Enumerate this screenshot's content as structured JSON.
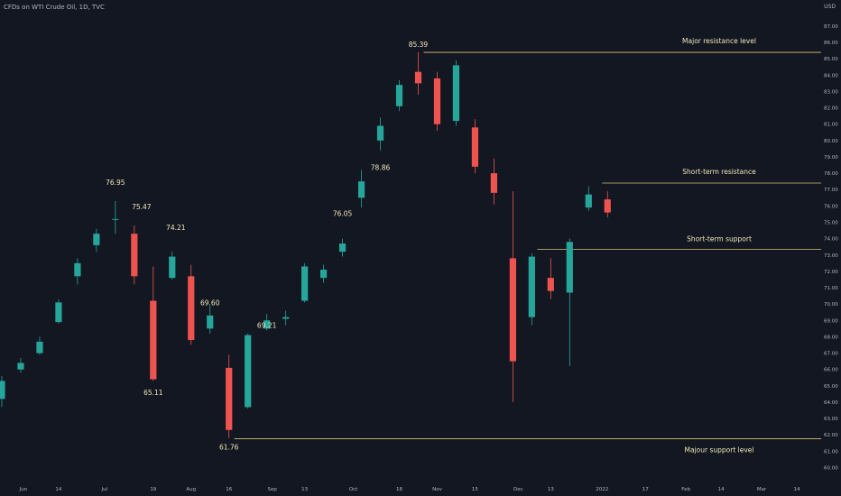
{
  "header": {
    "title": "CFDs on WTI Crude Oil, 1D, TVC"
  },
  "currency_label": "USD",
  "colors": {
    "background": "#131722",
    "up": "#26a69a",
    "down": "#ef5350",
    "level_line": "#d6c36a",
    "annotation_text": "#f0e7b8",
    "axis_text": "#b2b5be"
  },
  "chart_data": {
    "type": "candlestick",
    "title": "CFDs on WTI Crude Oil, 1D, TVC",
    "ylabel": "USD",
    "ylim": [
      59.2,
      87.6
    ],
    "y_ticks": [
      "60.00",
      "61.00",
      "62.00",
      "63.00",
      "64.00",
      "65.00",
      "66.00",
      "67.00",
      "68.00",
      "69.00",
      "70.00",
      "71.00",
      "72.00",
      "73.00",
      "74.00",
      "75.00",
      "76.00",
      "77.00",
      "78.00",
      "79.00",
      "80.00",
      "81.00",
      "82.00",
      "83.00",
      "84.00",
      "85.00",
      "86.00",
      "87.00"
    ],
    "x_tick_labels": [
      "Jun",
      "14",
      "Jul",
      "19",
      "Aug",
      "16",
      "Sep",
      "13",
      "Oct",
      "18",
      "Nov",
      "15",
      "Dec",
      "13",
      "2022",
      "17",
      "Feb",
      "14",
      "Mar",
      "14"
    ],
    "x_range": [
      "2021-05-24",
      "2022-03-23"
    ],
    "x_ticks": [
      {
        "label": "Jun",
        "date": "2021-06-01"
      },
      {
        "label": "14",
        "date": "2021-06-14"
      },
      {
        "label": "Jul",
        "date": "2021-07-01"
      },
      {
        "label": "19",
        "date": "2021-07-19"
      },
      {
        "label": "Aug",
        "date": "2021-08-02"
      },
      {
        "label": "16",
        "date": "2021-08-16"
      },
      {
        "label": "Sep",
        "date": "2021-09-01"
      },
      {
        "label": "13",
        "date": "2021-09-13"
      },
      {
        "label": "Oct",
        "date": "2021-10-01"
      },
      {
        "label": "18",
        "date": "2021-10-18"
      },
      {
        "label": "Nov",
        "date": "2021-11-01"
      },
      {
        "label": "15",
        "date": "2021-11-15"
      },
      {
        "label": "Dec",
        "date": "2021-12-01"
      },
      {
        "label": "13",
        "date": "2021-12-13"
      },
      {
        "label": "2022",
        "date": "2022-01-01"
      },
      {
        "label": "17",
        "date": "2022-01-17"
      },
      {
        "label": "Feb",
        "date": "2022-02-01"
      },
      {
        "label": "14",
        "date": "2022-02-14"
      },
      {
        "label": "Mar",
        "date": "2022-03-01"
      },
      {
        "label": "14",
        "date": "2022-03-14"
      }
    ],
    "series": [
      {
        "values": [
          [
            "2021-05-24",
            64.2,
            65.6,
            63.7,
            65.3
          ],
          [
            "2021-05-31",
            66.0,
            66.7,
            65.8,
            66.4
          ],
          [
            "2021-06-07",
            67.0,
            68.0,
            66.9,
            67.7
          ],
          [
            "2021-06-14",
            68.9,
            70.3,
            68.8,
            70.1
          ],
          [
            "2021-06-21",
            71.7,
            72.8,
            71.2,
            72.5
          ],
          [
            "2021-06-28",
            73.6,
            74.6,
            73.2,
            74.3
          ],
          [
            "2021-07-05",
            75.2,
            76.3,
            74.3,
            75.2
          ],
          [
            "2021-07-12",
            74.3,
            74.8,
            71.2,
            71.7
          ],
          [
            "2021-07-19",
            70.2,
            72.3,
            65.3,
            65.4
          ],
          [
            "2021-07-26",
            71.6,
            73.2,
            71.5,
            72.9
          ],
          [
            "2021-08-02",
            71.7,
            72.4,
            67.5,
            67.8
          ],
          [
            "2021-08-09",
            68.5,
            69.9,
            68.2,
            69.3
          ],
          [
            "2021-08-16",
            66.1,
            66.9,
            61.8,
            62.3
          ],
          [
            "2021-08-23",
            63.7,
            68.2,
            63.6,
            68.1
          ],
          [
            "2021-08-30",
            68.5,
            69.4,
            68.4,
            69.0
          ],
          [
            "2021-09-06",
            69.1,
            69.6,
            68.7,
            69.2
          ],
          [
            "2021-09-13",
            70.2,
            72.5,
            70.1,
            72.3
          ],
          [
            "2021-09-20",
            71.6,
            72.4,
            71.3,
            72.1
          ],
          [
            "2021-09-27",
            73.2,
            74.0,
            72.9,
            73.7
          ],
          [
            "2021-10-04",
            76.5,
            78.2,
            75.9,
            77.5
          ],
          [
            "2021-10-11",
            80.0,
            81.4,
            79.4,
            80.9
          ],
          [
            "2021-10-18",
            82.1,
            83.7,
            81.8,
            83.4
          ],
          [
            "2021-10-25",
            84.2,
            85.4,
            82.8,
            83.5
          ],
          [
            "2021-11-01",
            83.8,
            84.2,
            80.6,
            81.0
          ],
          [
            "2021-11-08",
            81.2,
            84.9,
            80.9,
            84.6
          ],
          [
            "2021-11-15",
            80.8,
            81.3,
            78.0,
            78.4
          ],
          [
            "2021-11-22",
            78.0,
            78.9,
            76.1,
            76.8
          ],
          [
            "2021-11-29",
            72.8,
            76.9,
            64.0,
            66.5
          ],
          [
            "2021-12-06",
            69.2,
            73.1,
            68.7,
            72.9
          ],
          [
            "2021-12-13",
            71.6,
            72.8,
            70.3,
            70.8
          ],
          [
            "2021-12-20",
            70.7,
            74.0,
            66.2,
            73.8
          ],
          [
            "2021-12-27",
            75.9,
            77.2,
            75.7,
            76.7
          ],
          [
            "2022-01-03",
            76.4,
            76.9,
            75.3,
            75.6
          ]
        ]
      }
    ],
    "levels": [
      {
        "label": "Major resistance level",
        "value": 85.39
      },
      {
        "label": "Short-term resistance",
        "value": 77.4
      },
      {
        "label": "Short-term support",
        "value": 73.35
      },
      {
        "label": "Majour support level",
        "value": 61.76
      }
    ],
    "annotations": [
      {
        "text": "76.95",
        "date": "2021-07-05",
        "value": 76.95
      },
      {
        "text": "75.47",
        "date": "2021-07-12",
        "value": 75.47
      },
      {
        "text": "74.21",
        "date": "2021-07-26",
        "value": 74.21
      },
      {
        "text": "65.11",
        "date": "2021-07-19",
        "value": 65.11
      },
      {
        "text": "69.60",
        "date": "2021-08-09",
        "value": 69.6
      },
      {
        "text": "69.21",
        "date": "2021-08-30",
        "value": 69.21
      },
      {
        "text": "61.76",
        "date": "2021-08-16",
        "value": 61.76
      },
      {
        "text": "76.05",
        "date": "2021-09-27",
        "value": 76.05
      },
      {
        "text": "78.86",
        "date": "2021-10-11",
        "value": 78.86
      },
      {
        "text": "85.39",
        "date": "2021-10-25",
        "value": 85.39
      }
    ]
  }
}
